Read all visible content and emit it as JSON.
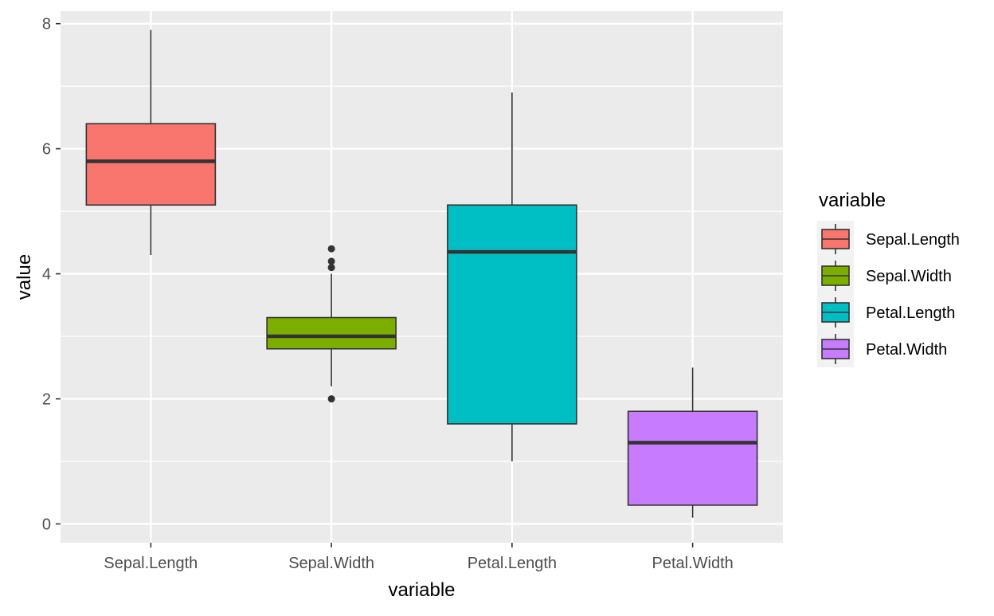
{
  "chart_data": {
    "type": "box",
    "xlabel": "variable",
    "ylabel": "value",
    "ylim": [
      -0.3,
      8.2
    ],
    "yticks": [
      0,
      2,
      4,
      6,
      8
    ],
    "categories": [
      "Sepal.Length",
      "Sepal.Width",
      "Petal.Length",
      "Petal.Width"
    ],
    "boxes": [
      {
        "category": "Sepal.Length",
        "min": 4.3,
        "q1": 5.1,
        "median": 5.8,
        "q3": 6.4,
        "max": 7.9,
        "outliers": [],
        "color": "#F8766D"
      },
      {
        "category": "Sepal.Width",
        "min": 2.2,
        "q1": 2.8,
        "median": 3.0,
        "q3": 3.3,
        "max": 4.0,
        "outliers": [
          2.0,
          4.1,
          4.2,
          4.4
        ],
        "color": "#7CAE00"
      },
      {
        "category": "Petal.Length",
        "min": 1.0,
        "q1": 1.6,
        "median": 4.35,
        "q3": 5.1,
        "max": 6.9,
        "outliers": [],
        "color": "#00BFC4"
      },
      {
        "category": "Petal.Width",
        "min": 0.1,
        "q1": 0.3,
        "median": 1.3,
        "q3": 1.8,
        "max": 2.5,
        "outliers": [],
        "color": "#C77CFF"
      }
    ],
    "grid": true,
    "panel_background": "#EBEBEB",
    "legend": {
      "title": "variable",
      "position": "right",
      "entries": [
        "Sepal.Length",
        "Sepal.Width",
        "Petal.Length",
        "Petal.Width"
      ]
    }
  }
}
